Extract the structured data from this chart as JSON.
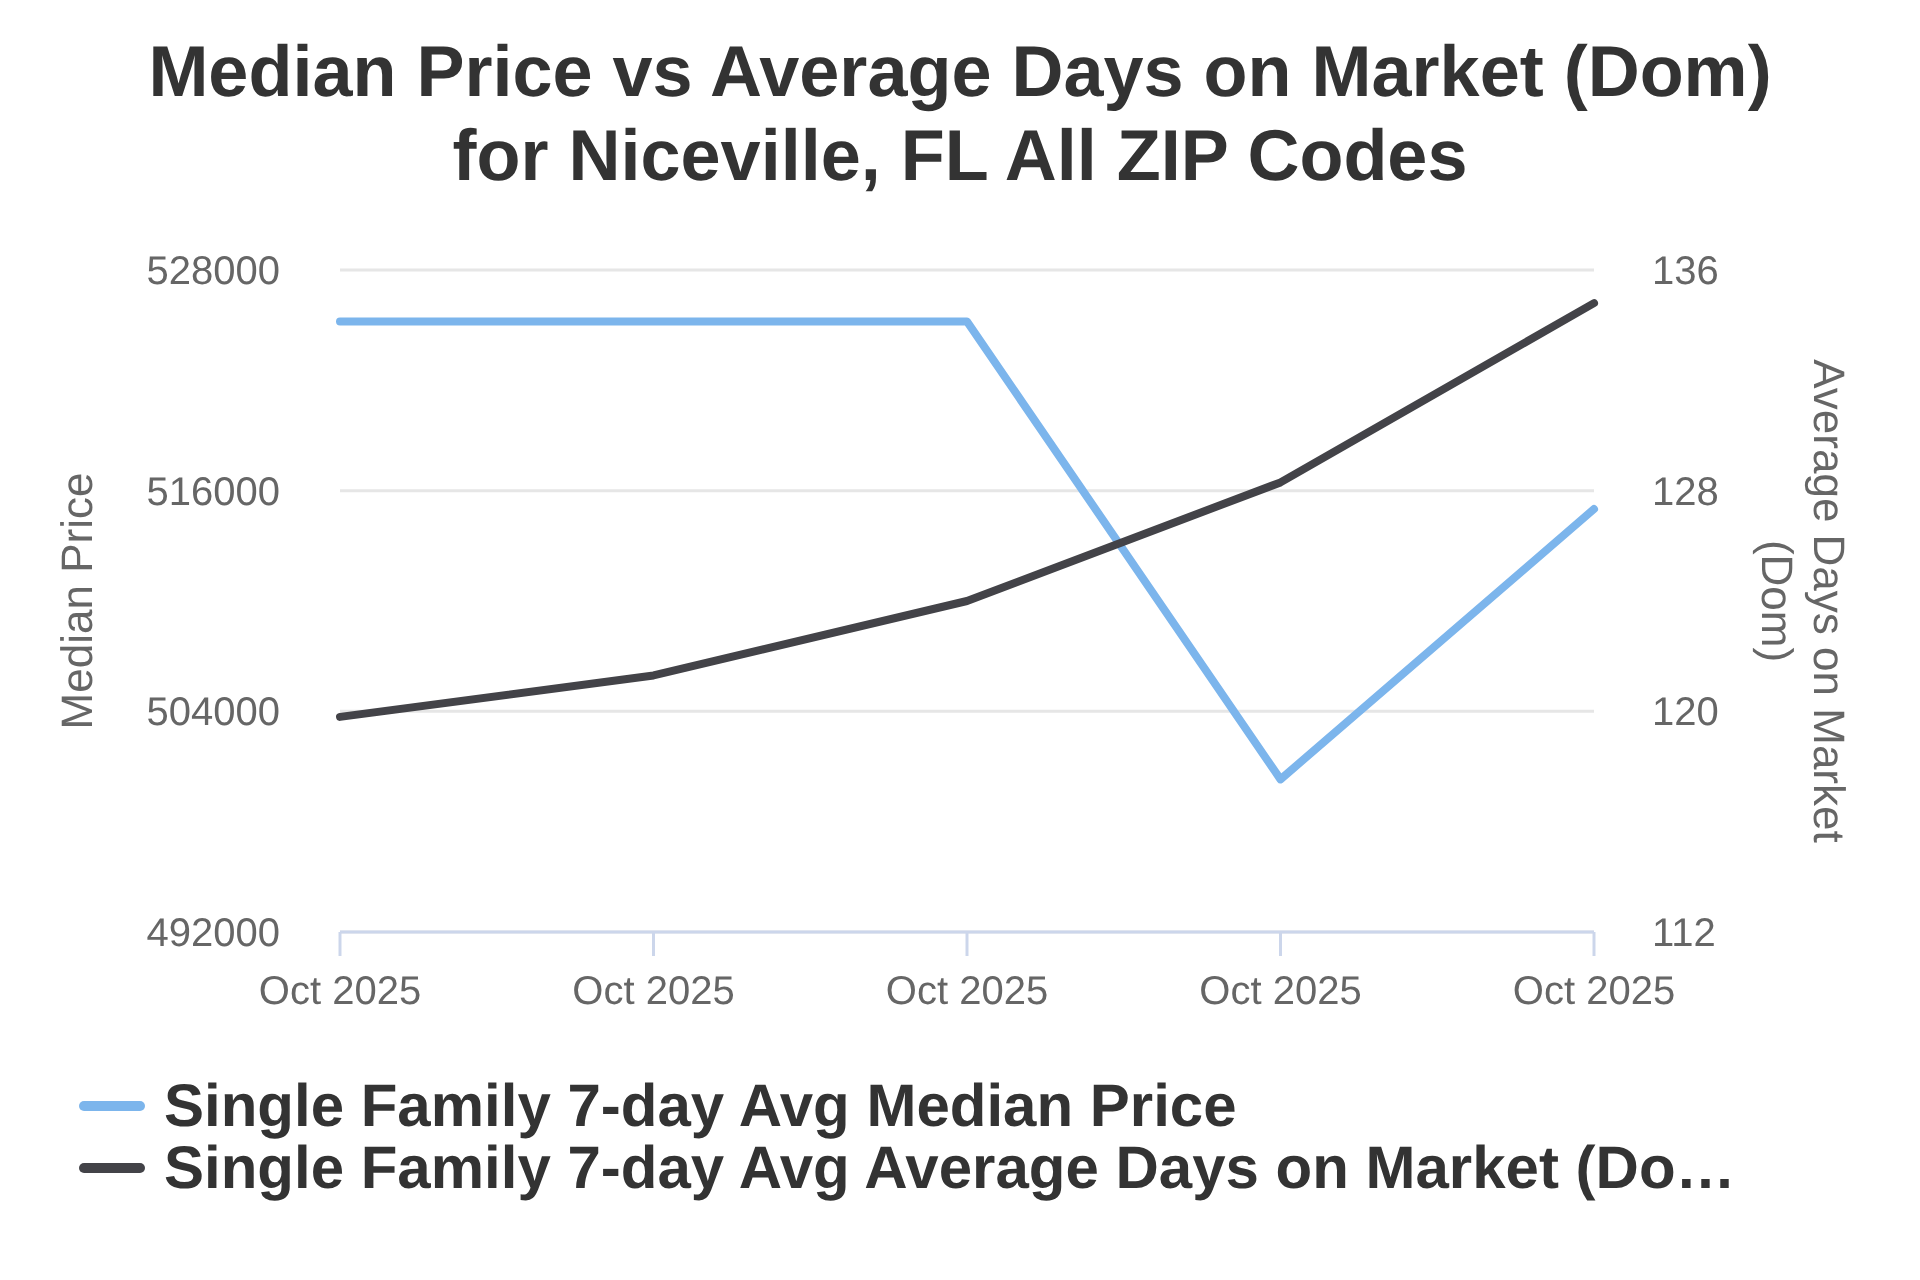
{
  "chart_data": {
    "type": "line",
    "title": "Median Price vs Average Days on Market (Dom) for Niceville, FL All ZIP Codes",
    "ylabel": "Median Price",
    "y2label": "Average Days on Market (Dom)",
    "categories": [
      "Oct 2025",
      "Oct 2025",
      "Oct 2025",
      "Oct 2025",
      "Oct 2025"
    ],
    "series": [
      {
        "name": "Single Family 7-day Avg Median Price",
        "color": "#7cb5ec",
        "values": [
          525200,
          525200,
          525200,
          500300,
          515000
        ]
      },
      {
        "name": "Single Family 7-day Avg Average Days on Market (Do…",
        "color": "#434348",
        "values": [
          119.8,
          121.3,
          124.0,
          128.3,
          134.8
        ],
        "axis": "y2"
      }
    ],
    "ylim": [
      492000,
      528000
    ],
    "yticks": [
      492000,
      504000,
      516000,
      528000
    ],
    "y2lim": [
      112,
      136
    ],
    "y2ticks": [
      112,
      120,
      128,
      136
    ],
    "grid": "y",
    "legend": "bottom",
    "marker": "none",
    "line_style": "solid"
  }
}
